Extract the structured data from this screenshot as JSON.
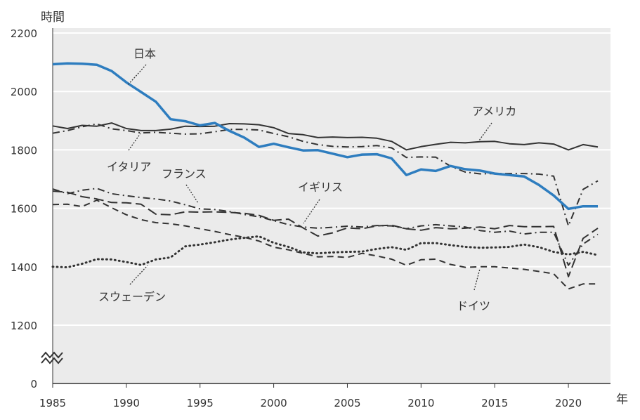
{
  "chart_data": {
    "type": "line",
    "ylabel": "時間",
    "xlabel": "年",
    "xlim": [
      1985,
      2022
    ],
    "ylim": [
      1000,
      2200
    ],
    "y_axis_break": true,
    "y_ticks": [
      "0",
      "1200",
      "1400",
      "1600",
      "1800",
      "2000",
      "2200"
    ],
    "x_ticks": [
      "1985",
      "1990",
      "1995",
      "2000",
      "2005",
      "2010",
      "2015",
      "2020"
    ],
    "grid": "horizontal",
    "x": [
      1985,
      1986,
      1987,
      1988,
      1989,
      1990,
      1991,
      1992,
      1993,
      1994,
      1995,
      1996,
      1997,
      1998,
      1999,
      2000,
      2001,
      2002,
      2003,
      2004,
      2005,
      2006,
      2007,
      2008,
      2009,
      2010,
      2011,
      2012,
      2013,
      2014,
      2015,
      2016,
      2017,
      2018,
      2019,
      2020,
      2021,
      2022
    ],
    "series": [
      {
        "name": "日本",
        "color": "#2e7dbf",
        "style": "solid-thick",
        "values": [
          2093,
          2096,
          2095,
          2091,
          2070,
          2031,
          1998,
          1965,
          1905,
          1898,
          1884,
          1892,
          1865,
          1842,
          1810,
          1821,
          1809,
          1798,
          1799,
          1787,
          1775,
          1784,
          1785,
          1771,
          1714,
          1733,
          1728,
          1745,
          1734,
          1729,
          1719,
          1714,
          1709,
          1680,
          1644,
          1598,
          1607,
          1607
        ]
      },
      {
        "name": "アメリカ",
        "color": "#333333",
        "style": "solid",
        "values": [
          1882,
          1873,
          1884,
          1881,
          1892,
          1873,
          1866,
          1866,
          1871,
          1881,
          1880,
          1881,
          1890,
          1889,
          1886,
          1876,
          1856,
          1852,
          1842,
          1844,
          1842,
          1843,
          1840,
          1829,
          1800,
          1811,
          1819,
          1826,
          1824,
          1828,
          1829,
          1821,
          1818,
          1824,
          1820,
          1800,
          1818,
          1810
        ]
      },
      {
        "name": "イタリア",
        "color": "#333333",
        "style": "dashdot",
        "values": [
          1857,
          1866,
          1879,
          1889,
          1872,
          1866,
          1858,
          1860,
          1857,
          1854,
          1855,
          1862,
          1870,
          1870,
          1868,
          1856,
          1845,
          1829,
          1818,
          1812,
          1810,
          1811,
          1815,
          1807,
          1774,
          1776,
          1775,
          1744,
          1724,
          1718,
          1719,
          1719,
          1719,
          1717,
          1710,
          1540,
          1665,
          1694
        ]
      },
      {
        "name": "フランス",
        "color": "#333333",
        "style": "dashdot",
        "values": [
          1666,
          1650,
          1662,
          1668,
          1650,
          1643,
          1637,
          1632,
          1625,
          1612,
          1598,
          1596,
          1589,
          1579,
          1571,
          1558,
          1544,
          1536,
          1532,
          1535,
          1539,
          1536,
          1541,
          1540,
          1530,
          1540,
          1544,
          1540,
          1536,
          1524,
          1518,
          1522,
          1512,
          1518,
          1518,
          1405,
          1478,
          1511
        ]
      },
      {
        "name": "イギリス",
        "color": "#333333",
        "style": "longdash",
        "values": [
          1659,
          1655,
          1640,
          1632,
          1620,
          1619,
          1614,
          1580,
          1578,
          1588,
          1587,
          1588,
          1586,
          1583,
          1576,
          1559,
          1563,
          1533,
          1505,
          1516,
          1533,
          1530,
          1540,
          1542,
          1530,
          1525,
          1534,
          1530,
          1532,
          1536,
          1530,
          1541,
          1537,
          1537,
          1538,
          1366,
          1497,
          1532
        ]
      },
      {
        "name": "ドイツ",
        "color": "#333333",
        "style": "dashed",
        "values": [
          1613,
          1614,
          1606,
          1628,
          1602,
          1578,
          1561,
          1551,
          1547,
          1540,
          1530,
          1521,
          1510,
          1501,
          1488,
          1467,
          1458,
          1446,
          1434,
          1435,
          1432,
          1446,
          1437,
          1426,
          1405,
          1424,
          1426,
          1408,
          1398,
          1400,
          1400,
          1396,
          1391,
          1384,
          1376,
          1324,
          1341,
          1341
        ]
      },
      {
        "name": "スウェーデン",
        "color": "#333333",
        "style": "dotted",
        "values": [
          1400,
          1398,
          1410,
          1426,
          1425,
          1416,
          1406,
          1425,
          1432,
          1470,
          1476,
          1484,
          1493,
          1499,
          1504,
          1482,
          1468,
          1449,
          1446,
          1449,
          1451,
          1452,
          1461,
          1467,
          1458,
          1481,
          1481,
          1474,
          1468,
          1465,
          1466,
          1468,
          1476,
          1467,
          1451,
          1442,
          1451,
          1440
        ]
      }
    ]
  }
}
